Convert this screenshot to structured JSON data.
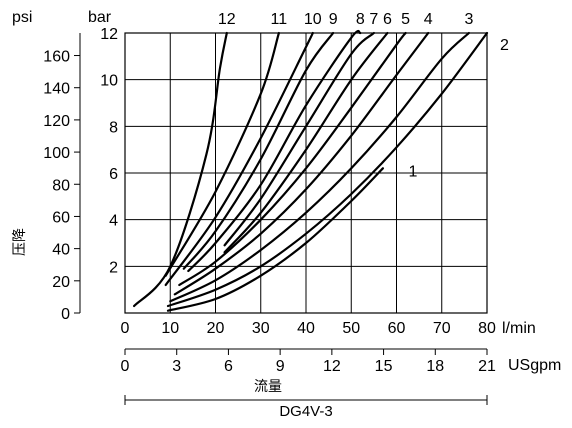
{
  "chart_data": {
    "type": "line",
    "x_axis": {
      "label": "l/min",
      "range": [
        0,
        80
      ],
      "ticks": [
        "0",
        "10",
        "20",
        "30",
        "40",
        "50",
        "60",
        "70",
        "80"
      ]
    },
    "x_axis_secondary": {
      "label": "USgpm",
      "range": [
        0,
        21
      ],
      "ticks": [
        "0",
        "3",
        "6",
        "9",
        "12",
        "15",
        "18",
        "21"
      ]
    },
    "y_axis": {
      "label": "bar",
      "range": [
        0,
        12
      ],
      "ticks": [
        "2",
        "4",
        "6",
        "8",
        "10",
        "12"
      ]
    },
    "y_axis_secondary": {
      "label": "psi",
      "range": [
        0,
        174
      ],
      "ticks": [
        "0",
        "20",
        "40",
        "60",
        "80",
        "100",
        "120",
        "140",
        "160"
      ]
    },
    "pressure_label": "压降",
    "flow_label": "流量",
    "model_label": "DG4V-3",
    "grid": true,
    "series": [
      {
        "name": "1",
        "x": [
          9.5,
          20,
          30,
          40,
          50,
          57
        ],
        "y": [
          0.1,
          0.6,
          1.6,
          3.0,
          4.8,
          6.2
        ]
      },
      {
        "name": "2",
        "x": [
          9.5,
          20,
          30,
          40,
          50,
          60,
          70,
          80
        ],
        "y": [
          0.3,
          1.0,
          2.0,
          3.4,
          5.1,
          7.1,
          9.4,
          12
        ]
      },
      {
        "name": "3",
        "x": [
          10,
          20,
          30,
          40,
          50,
          60,
          70,
          76
        ],
        "y": [
          0.5,
          1.4,
          2.7,
          4.3,
          6.2,
          8.4,
          10.9,
          12
        ]
      },
      {
        "name": "4",
        "x": [
          11,
          20,
          30,
          40,
          50,
          60,
          67
        ],
        "y": [
          0.8,
          1.9,
          3.4,
          5.3,
          7.6,
          10.2,
          12
        ]
      },
      {
        "name": "5",
        "x": [
          12,
          20,
          30,
          40,
          50,
          60,
          62
        ],
        "y": [
          1.2,
          2.2,
          4.0,
          6.2,
          8.8,
          11.5,
          12
        ]
      },
      {
        "name": "6",
        "x": [
          22,
          30,
          40,
          50,
          58
        ],
        "y": [
          2.6,
          4.3,
          7.0,
          10.0,
          12
        ]
      },
      {
        "name": "7",
        "x": [
          22,
          30,
          40,
          50,
          55
        ],
        "y": [
          2.9,
          4.9,
          8.0,
          11.1,
          12
        ]
      },
      {
        "name": "8",
        "x": [
          14,
          20,
          30,
          40,
          50,
          52
        ],
        "y": [
          1.8,
          3.0,
          5.5,
          8.9,
          11.8,
          12
        ]
      },
      {
        "name": "9",
        "x": [
          13,
          20,
          30,
          40,
          46
        ],
        "y": [
          1.9,
          3.5,
          6.6,
          10.4,
          12
        ]
      },
      {
        "name": "10",
        "x": [
          9,
          20,
          30,
          40,
          41.5
        ],
        "y": [
          1.2,
          4.1,
          7.5,
          11.4,
          12
        ]
      },
      {
        "name": "11",
        "x": [
          9,
          20,
          30,
          34
        ],
        "y": [
          1.6,
          5.2,
          9.4,
          12
        ]
      },
      {
        "name": "12",
        "x": [
          2,
          10,
          18,
          21,
          22.5
        ],
        "y": [
          0.3,
          2.0,
          6.8,
          10.5,
          12
        ]
      }
    ]
  }
}
